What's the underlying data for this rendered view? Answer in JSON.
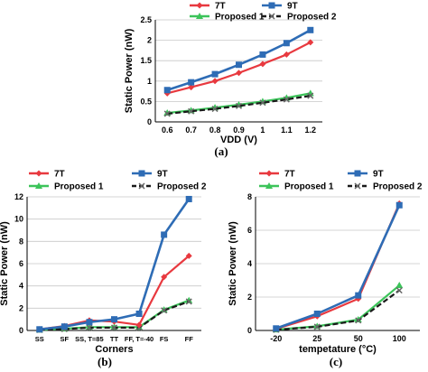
{
  "colors": {
    "7T": "#e8393f",
    "9T": "#2e6cb5",
    "Proposed 1": "#3cc45a",
    "Proposed 2": "#1a1a1a",
    "grid": "#c8c8c8",
    "axis": "#000000"
  },
  "chart_data": [
    {
      "type": "line",
      "panel_label": "(a)",
      "xlabel": "VDD (V)",
      "ylabel": "Static Power (nW)",
      "categories": [
        "0.6",
        "0.7",
        "0.8",
        "0.9",
        "1",
        "1.1",
        "1.2"
      ],
      "ylim": [
        0,
        2.5
      ],
      "yticks": [
        "0",
        "0.5",
        "1",
        "1.5",
        "2",
        "2.5"
      ],
      "grid": "horizontal",
      "legend": "top",
      "series": [
        {
          "name": "7T",
          "values": [
            0.7,
            0.85,
            1.0,
            1.2,
            1.42,
            1.65,
            1.95
          ]
        },
        {
          "name": "9T",
          "values": [
            0.78,
            0.97,
            1.17,
            1.4,
            1.65,
            1.93,
            2.25
          ]
        },
        {
          "name": "Proposed 1",
          "values": [
            0.22,
            0.28,
            0.35,
            0.42,
            0.5,
            0.59,
            0.7
          ]
        },
        {
          "name": "Proposed 2",
          "values": [
            0.2,
            0.26,
            0.32,
            0.39,
            0.47,
            0.55,
            0.64
          ]
        }
      ]
    },
    {
      "type": "line",
      "panel_label": "(b)",
      "xlabel": "Corners",
      "ylabel": "Static Power (nW)",
      "categories": [
        "SS",
        "SF",
        "SS, T=85",
        "TT",
        "FF, T=-40",
        "FS",
        "FF"
      ],
      "ylim": [
        0,
        12
      ],
      "yticks": [
        "0",
        "2",
        "4",
        "6",
        "8",
        "10",
        "12"
      ],
      "grid": "horizontal",
      "legend": "top",
      "series": [
        {
          "name": "7T",
          "values": [
            0.1,
            0.4,
            0.9,
            0.8,
            0.5,
            4.8,
            6.7
          ]
        },
        {
          "name": "9T",
          "values": [
            0.1,
            0.35,
            0.75,
            1.0,
            1.5,
            8.6,
            11.8
          ]
        },
        {
          "name": "Proposed 1",
          "values": [
            0.05,
            0.15,
            0.3,
            0.3,
            0.3,
            1.85,
            2.7
          ]
        },
        {
          "name": "Proposed 2",
          "values": [
            0.05,
            0.12,
            0.25,
            0.25,
            0.25,
            1.8,
            2.6
          ]
        }
      ]
    },
    {
      "type": "line",
      "panel_label": "(c)",
      "xlabel": "tempetature (°C)",
      "ylabel": "Static Power (nW)",
      "categories": [
        "-20",
        "25",
        "50",
        "100"
      ],
      "ylim": [
        0,
        8
      ],
      "yticks": [
        "0",
        "2",
        "4",
        "6",
        "8"
      ],
      "grid": "horizontal",
      "legend": "top",
      "series": [
        {
          "name": "7T",
          "values": [
            0.1,
            0.85,
            1.9,
            7.6
          ]
        },
        {
          "name": "9T",
          "values": [
            0.12,
            1.0,
            2.1,
            7.5
          ]
        },
        {
          "name": "Proposed 1",
          "values": [
            0.05,
            0.25,
            0.65,
            2.7
          ]
        },
        {
          "name": "Proposed 2",
          "values": [
            0.04,
            0.22,
            0.6,
            2.4
          ]
        }
      ]
    }
  ]
}
